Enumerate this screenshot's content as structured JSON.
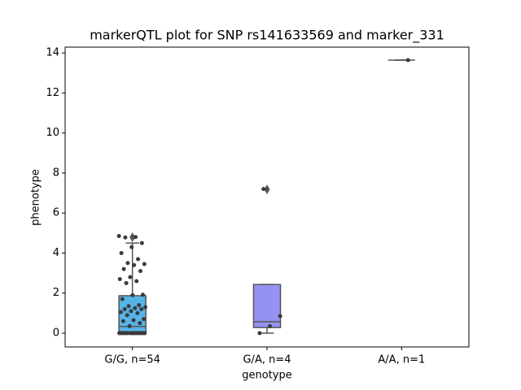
{
  "chart_data": {
    "type": "box",
    "title": "markerQTL plot for SNP rs141633569 and marker_331",
    "xlabel": "genotype",
    "ylabel": "phenotype",
    "categories": [
      "G/G, n=54",
      "G/A, n=4",
      "A/A, n=1"
    ],
    "ylim": [
      -0.69,
      14.29
    ],
    "yticks": [
      0,
      2,
      4,
      6,
      8,
      10,
      12,
      14
    ],
    "boxes": [
      {
        "q1": 0.04,
        "median": 0.33,
        "q3": 1.87,
        "whislo": 0,
        "whishi": 4.5,
        "fliers": [
          4.79
        ],
        "color": "#56b4e9"
      },
      {
        "q1": 0.28,
        "median": 0.57,
        "q3": 2.43,
        "whislo": 0,
        "whishi": 2.43,
        "fliers": [
          7.18
        ],
        "color": "#9492f2"
      },
      {
        "q1": 13.64,
        "median": 13.64,
        "q3": 13.64,
        "whislo": 13.64,
        "whishi": 13.64,
        "fliers": []
      }
    ],
    "points": [
      [
        4.85,
        4.8,
        4.78,
        4.5,
        4.3,
        4.0,
        3.7,
        3.5,
        3.45,
        3.4,
        3.2,
        3.1,
        2.8,
        2.7,
        2.6,
        2.5,
        1.92,
        1.9,
        1.7,
        1.4,
        1.35,
        1.3,
        1.25,
        1.2,
        1.2,
        1.1,
        1.05,
        1.0,
        0.9,
        0.7,
        0.65,
        0.6,
        0.5,
        0.35,
        0,
        0,
        0,
        0,
        0,
        0,
        0,
        0,
        0,
        0,
        0,
        0,
        0,
        0,
        0,
        0,
        0,
        0,
        0,
        0
      ],
      [
        7.2,
        0.85,
        0.35,
        0
      ],
      [
        13.64
      ]
    ],
    "point_color": "#3a3a3a",
    "edge_color": "#555555"
  }
}
